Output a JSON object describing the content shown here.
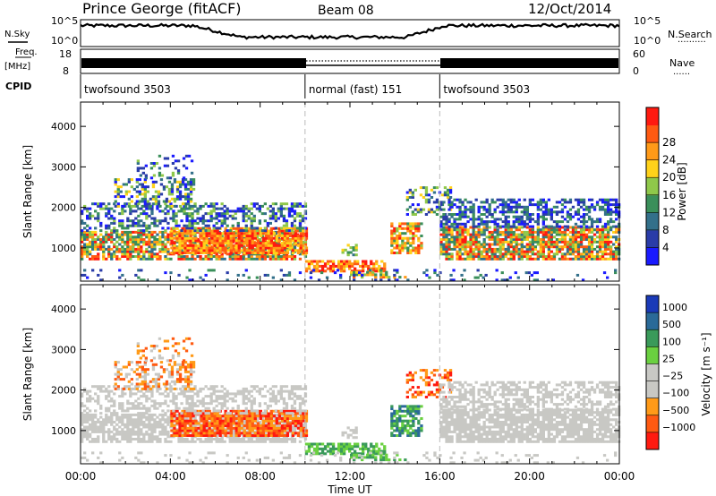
{
  "header": {
    "station": "Prince George (fitACF)",
    "beam": "Beam 08",
    "date": "12/Oct/2014"
  },
  "top_panels": {
    "nsky_label": "N.Sky",
    "nsearch_label": "N.Search",
    "nsearch_line": "··········",
    "freq_label_1": "Freq.",
    "freq_label_2": "[MHz]",
    "nave_label": "Nave",
    "nave_line": "······",
    "cpid_label": "CPID",
    "left_ticks": {
      "nsky_hi": "10^5",
      "nsky_lo": "10^0",
      "freq_hi": "18",
      "freq_lo": "8"
    },
    "right_ticks": {
      "ns_hi": "10^5",
      "ns_lo": "10^0",
      "nave_hi": "60",
      "nave_lo": "0"
    }
  },
  "cpid_segments": [
    {
      "label": "twofsound 3503",
      "start_h": 0,
      "end_h": 10
    },
    {
      "label": "normal (fast) 151",
      "start_h": 10,
      "end_h": 16
    },
    {
      "label": "twofsound 3503",
      "start_h": 16,
      "end_h": 24
    }
  ],
  "colors": {
    "power_scale": [
      "#1a1aff",
      "#2a3ca8",
      "#33708a",
      "#3a8f5a",
      "#8fc84a",
      "#ffd21a",
      "#ff9a18",
      "#ff5a12",
      "#ff1a10"
    ],
    "velocity_scale": [
      "#ff1a10",
      "#ff5a12",
      "#ff9a18",
      "#c8c8c4",
      "#c8c8c4",
      "#6ad040",
      "#3a9a5a",
      "#2a6a98",
      "#1a3ab8"
    ]
  },
  "chart_data": [
    {
      "type": "heatmap",
      "name": "Power",
      "ylabel": "Slant Range [km]",
      "xlabel": "",
      "xlim": [
        0,
        24
      ],
      "ylim": [
        180,
        4600
      ],
      "yticks": [
        "1000",
        "2000",
        "3000",
        "4000"
      ],
      "colorbar_label": "Power [dB]",
      "colorbar_ticks": [
        "4",
        "8",
        "12",
        "16",
        "20",
        "24",
        "28"
      ]
    },
    {
      "type": "heatmap",
      "name": "Velocity",
      "ylabel": "Slant Range [km]",
      "xlabel": "Time UT",
      "xlim": [
        0,
        24
      ],
      "ylim": [
        180,
        4600
      ],
      "yticks": [
        "1000",
        "2000",
        "3000",
        "4000"
      ],
      "xticks": [
        "00:00",
        "04:00",
        "08:00",
        "12:00",
        "16:00",
        "20:00",
        "00:00"
      ],
      "colorbar_label": "Velocity [m s⁻¹]",
      "colorbar_ticks": [
        "1000",
        "500",
        "100",
        "25",
        "−25",
        "−100",
        "−500",
        "−1000"
      ]
    }
  ]
}
